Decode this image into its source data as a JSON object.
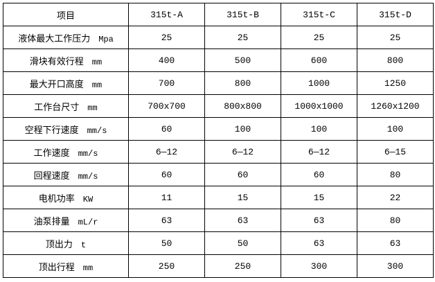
{
  "header": [
    "项目",
    "315t-A",
    "315t-B",
    "315t-C",
    "315t-D"
  ],
  "rows": [
    {
      "label": "液体最大工作压力",
      "unit": "Mpa",
      "values": [
        "25",
        "25",
        "25",
        "25"
      ]
    },
    {
      "label": "滑块有效行程",
      "unit": "mm",
      "values": [
        "400",
        "500",
        "600",
        "800"
      ]
    },
    {
      "label": "最大开口高度",
      "unit": "mm",
      "values": [
        "700",
        "800",
        "1000",
        "1250"
      ]
    },
    {
      "label": "工作台尺寸",
      "unit": "mm",
      "values": [
        "700x700",
        "800x800",
        "1000x1000",
        "1260x1200"
      ]
    },
    {
      "label": "空程下行速度",
      "unit": "mm/s",
      "values": [
        "60",
        "100",
        "100",
        "100"
      ]
    },
    {
      "label": "工作速度",
      "unit": "mm/s",
      "values": [
        "6—12",
        "6—12",
        "6—12",
        "6—15"
      ]
    },
    {
      "label": "回程速度",
      "unit": "mm/s",
      "values": [
        "60",
        "60",
        "60",
        "80"
      ]
    },
    {
      "label": "电机功率",
      "unit": "KW",
      "values": [
        "11",
        "15",
        "15",
        "22"
      ]
    },
    {
      "label": "油泵排量",
      "unit": "mL/r",
      "values": [
        "63",
        "63",
        "63",
        "80"
      ]
    },
    {
      "label": "顶出力",
      "unit": "t",
      "values": [
        "50",
        "50",
        "63",
        "63"
      ]
    },
    {
      "label": "顶出行程",
      "unit": "mm",
      "values": [
        "250",
        "250",
        "300",
        "300"
      ]
    }
  ]
}
